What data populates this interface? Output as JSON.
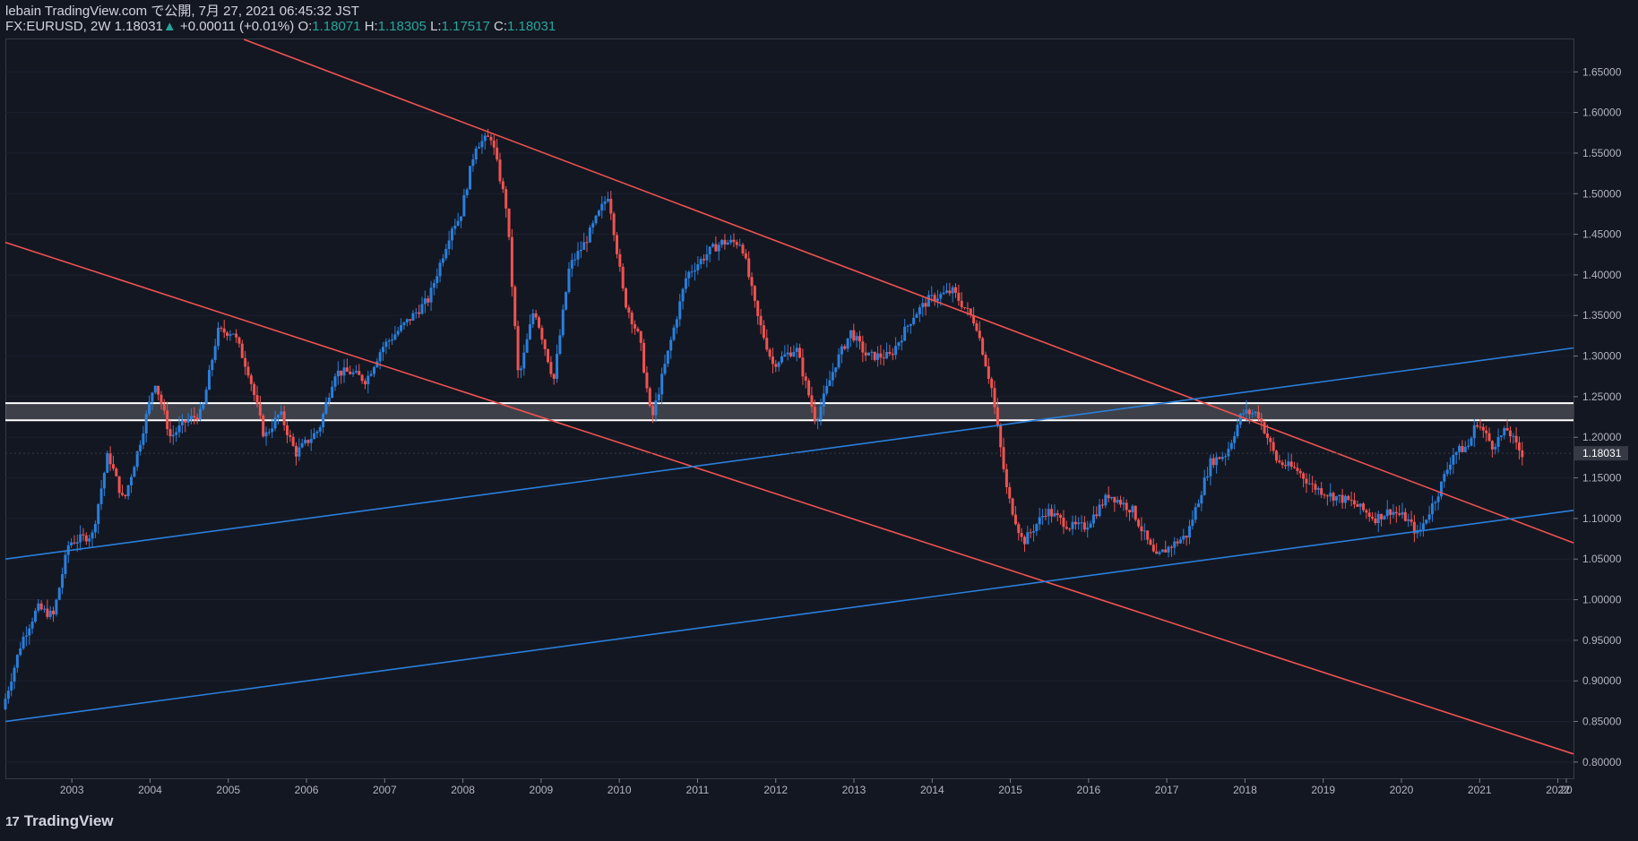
{
  "header": {
    "line1": "lebain TradingView.com で公開, 7月 27, 2021 06:45:32 JST",
    "symbol": "FX:EURUSD, 2W 1.18031",
    "change_arrow": "▲",
    "change": "+0.00011 (+0.01%)",
    "o_label": "O:",
    "o_val": "1.18071",
    "h_label": "H:",
    "h_val": "1.18305",
    "l_label": "L:",
    "l_val": "1.17517",
    "c_label": "C:",
    "c_val": "1.18031"
  },
  "footer": {
    "brand": "TradingView",
    "logo_glyph": "17"
  },
  "colors": {
    "background": "#131722",
    "up": "#2a7fdb",
    "down": "#ef5350",
    "resistance": "#ef5350",
    "support": "#2a7fdb",
    "zone": "#ffffff"
  },
  "chart_data": {
    "type": "candlestick",
    "symbol": "EURUSD",
    "interval": "2W",
    "last_price": "1.18031",
    "xlabel": "",
    "ylabel": "",
    "ylim": [
      0.78,
      1.69
    ],
    "xlim": [
      2002.15,
      2022.2
    ],
    "x_ticks": [
      "2003",
      "2004",
      "2005",
      "2006",
      "2007",
      "2008",
      "2009",
      "2010",
      "2011",
      "2012",
      "2013",
      "2014",
      "2015",
      "2016",
      "2017",
      "2018",
      "2019",
      "2020",
      "2021",
      "2022",
      "20"
    ],
    "y_ticks": [
      "0.80000",
      "0.85000",
      "0.90000",
      "0.95000",
      "1.00000",
      "1.05000",
      "1.10000",
      "1.15000",
      "1.20000",
      "1.25000",
      "1.30000",
      "1.35000",
      "1.40000",
      "1.45000",
      "1.50000",
      "1.55000",
      "1.60000",
      "1.65000"
    ],
    "price_path": [
      [
        2002.15,
        0.865
      ],
      [
        2002.4,
        0.95
      ],
      [
        2002.6,
        0.99
      ],
      [
        2002.8,
        0.98
      ],
      [
        2003.0,
        1.07
      ],
      [
        2003.3,
        1.08
      ],
      [
        2003.5,
        1.18
      ],
      [
        2003.7,
        1.12
      ],
      [
        2003.9,
        1.19
      ],
      [
        2004.1,
        1.27
      ],
      [
        2004.3,
        1.2
      ],
      [
        2004.5,
        1.22
      ],
      [
        2004.7,
        1.23
      ],
      [
        2004.9,
        1.33
      ],
      [
        2005.1,
        1.33
      ],
      [
        2005.3,
        1.28
      ],
      [
        2005.5,
        1.2
      ],
      [
        2005.7,
        1.23
      ],
      [
        2005.9,
        1.18
      ],
      [
        2006.0,
        1.19
      ],
      [
        2006.2,
        1.21
      ],
      [
        2006.4,
        1.28
      ],
      [
        2006.6,
        1.28
      ],
      [
        2006.8,
        1.27
      ],
      [
        2007.0,
        1.31
      ],
      [
        2007.3,
        1.34
      ],
      [
        2007.6,
        1.37
      ],
      [
        2007.9,
        1.46
      ],
      [
        2008.0,
        1.47
      ],
      [
        2008.2,
        1.56
      ],
      [
        2008.4,
        1.57
      ],
      [
        2008.6,
        1.48
      ],
      [
        2008.75,
        1.27
      ],
      [
        2008.95,
        1.36
      ],
      [
        2009.2,
        1.27
      ],
      [
        2009.4,
        1.41
      ],
      [
        2009.6,
        1.44
      ],
      [
        2009.9,
        1.5
      ],
      [
        2010.1,
        1.37
      ],
      [
        2010.3,
        1.32
      ],
      [
        2010.45,
        1.22
      ],
      [
        2010.6,
        1.28
      ],
      [
        2010.9,
        1.4
      ],
      [
        2011.2,
        1.43
      ],
      [
        2011.35,
        1.44
      ],
      [
        2011.6,
        1.44
      ],
      [
        2011.8,
        1.35
      ],
      [
        2012.0,
        1.29
      ],
      [
        2012.3,
        1.31
      ],
      [
        2012.55,
        1.22
      ],
      [
        2012.8,
        1.29
      ],
      [
        2013.0,
        1.33
      ],
      [
        2013.2,
        1.3
      ],
      [
        2013.5,
        1.3
      ],
      [
        2013.8,
        1.35
      ],
      [
        2014.0,
        1.37
      ],
      [
        2014.3,
        1.38
      ],
      [
        2014.6,
        1.34
      ],
      [
        2014.8,
        1.26
      ],
      [
        2015.0,
        1.13
      ],
      [
        2015.2,
        1.07
      ],
      [
        2015.5,
        1.11
      ],
      [
        2015.8,
        1.09
      ],
      [
        2016.0,
        1.09
      ],
      [
        2016.3,
        1.13
      ],
      [
        2016.6,
        1.11
      ],
      [
        2016.9,
        1.05
      ],
      [
        2017.0,
        1.06
      ],
      [
        2017.3,
        1.08
      ],
      [
        2017.6,
        1.17
      ],
      [
        2017.8,
        1.18
      ],
      [
        2018.0,
        1.23
      ],
      [
        2018.2,
        1.23
      ],
      [
        2018.45,
        1.17
      ],
      [
        2018.7,
        1.16
      ],
      [
        2018.9,
        1.14
      ],
      [
        2019.1,
        1.13
      ],
      [
        2019.4,
        1.12
      ],
      [
        2019.7,
        1.1
      ],
      [
        2019.9,
        1.11
      ],
      [
        2020.1,
        1.1
      ],
      [
        2020.25,
        1.08
      ],
      [
        2020.5,
        1.13
      ],
      [
        2020.7,
        1.18
      ],
      [
        2020.9,
        1.19
      ],
      [
        2021.0,
        1.22
      ],
      [
        2021.2,
        1.19
      ],
      [
        2021.4,
        1.21
      ],
      [
        2021.5,
        1.19
      ],
      [
        2021.58,
        1.18
      ]
    ],
    "annotations": {
      "trendlines": [
        {
          "name": "upper-resistance",
          "color": "red",
          "points": [
            [
              2005.2,
              1.69
            ],
            [
              2022.2,
              1.07
            ]
          ]
        },
        {
          "name": "lower-resistance",
          "color": "red",
          "points": [
            [
              2002.15,
              1.44
            ],
            [
              2022.2,
              0.81
            ]
          ]
        },
        {
          "name": "upper-support",
          "color": "blue",
          "points": [
            [
              2002.15,
              1.05
            ],
            [
              2022.2,
              1.31
            ]
          ]
        },
        {
          "name": "lower-support",
          "color": "blue",
          "points": [
            [
              2002.15,
              0.85
            ],
            [
              2022.2,
              1.11
            ]
          ]
        }
      ],
      "zone": {
        "from": 1.221,
        "to": 1.242
      }
    }
  }
}
